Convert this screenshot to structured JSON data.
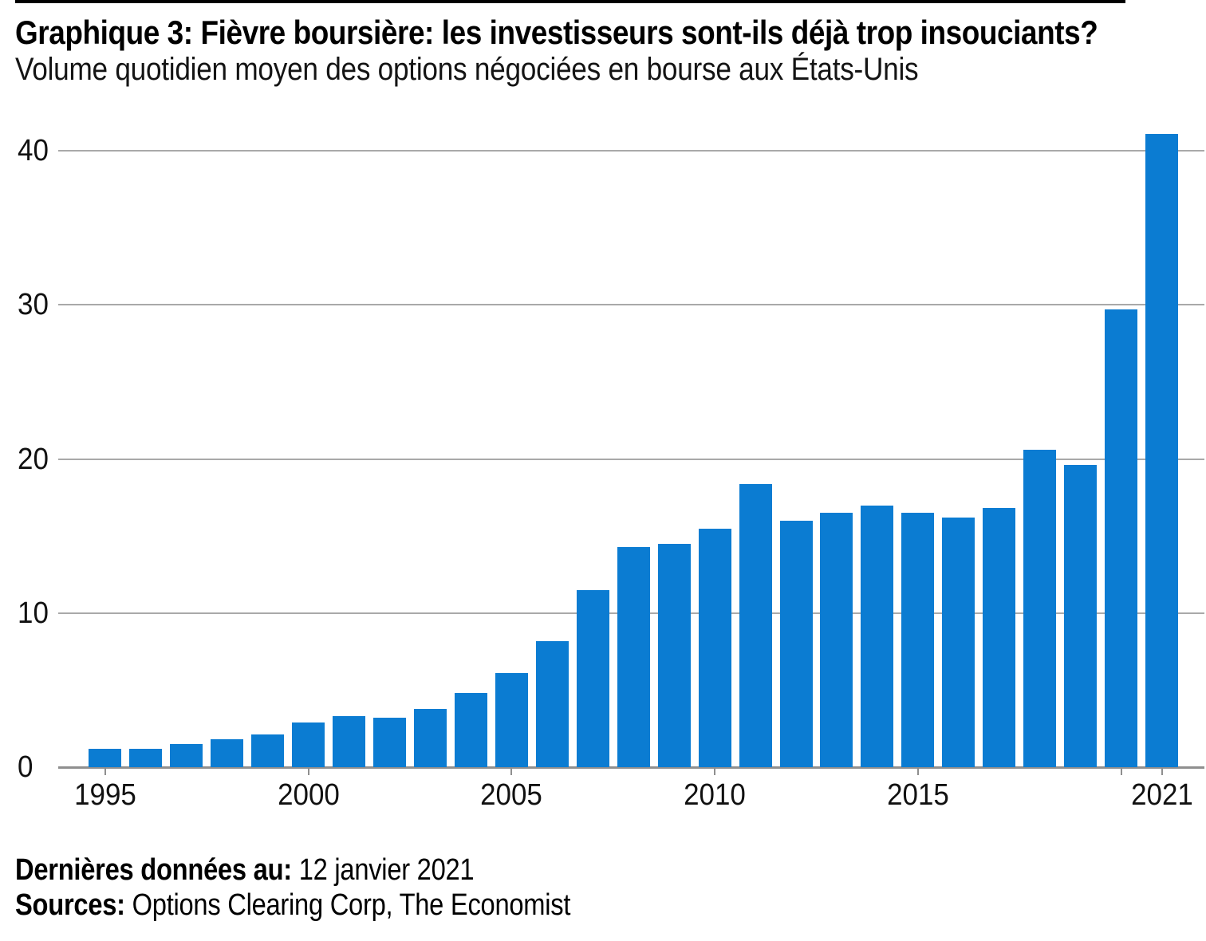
{
  "header": {
    "title": "Graphique 3: Fièvre boursière: les investisseurs sont-ils déjà trop insouciants?",
    "subtitle": "Volume quotidien moyen des options négociées en bourse aux États-Unis"
  },
  "chart_data": {
    "type": "bar",
    "title": "Graphique 3: Fièvre boursière: les investisseurs sont-ils déjà trop insouciants?",
    "subtitle": "Volume quotidien moyen des options négociées en bourse aux États-Unis",
    "categories": [
      1995,
      1996,
      1997,
      1998,
      1999,
      2000,
      2001,
      2002,
      2003,
      2004,
      2005,
      2006,
      2007,
      2008,
      2009,
      2010,
      2011,
      2012,
      2013,
      2014,
      2015,
      2016,
      2017,
      2018,
      2019,
      2020,
      2021
    ],
    "values": [
      1.2,
      1.2,
      1.5,
      1.8,
      2.1,
      2.9,
      3.3,
      3.2,
      3.8,
      4.8,
      6.1,
      8.2,
      11.5,
      14.3,
      14.5,
      15.5,
      18.4,
      16.0,
      16.5,
      17.0,
      16.5,
      16.2,
      16.8,
      20.6,
      19.6,
      29.7,
      41.1
    ],
    "xlabel": "",
    "ylabel": "",
    "ylim": [
      0,
      40
    ],
    "yticks": [
      0,
      10,
      20,
      30,
      40
    ],
    "xticks": [
      {
        "year": 1995,
        "label": "1995"
      },
      {
        "year": 2000,
        "label": "2000"
      },
      {
        "year": 2005,
        "label": "2005"
      },
      {
        "year": 2010,
        "label": "2010"
      },
      {
        "year": 2015,
        "label": "2015"
      },
      {
        "year": 2020,
        "label": ""
      },
      {
        "year": 2021,
        "label": "2021"
      }
    ],
    "grid": true,
    "legend": false,
    "bar_color": "#0b7cd2"
  },
  "colors": {
    "bar": "#0b7cd2",
    "gridline": "#a9a9a9",
    "axis": "#8f8f8f",
    "top_rule": "#000000"
  },
  "footer": {
    "last_data_label": "Dernières données au:",
    "last_data_value": " 12 janvier 2021",
    "sources_label": "Sources:",
    "sources_value": " Options Clearing Corp, The Economist"
  }
}
